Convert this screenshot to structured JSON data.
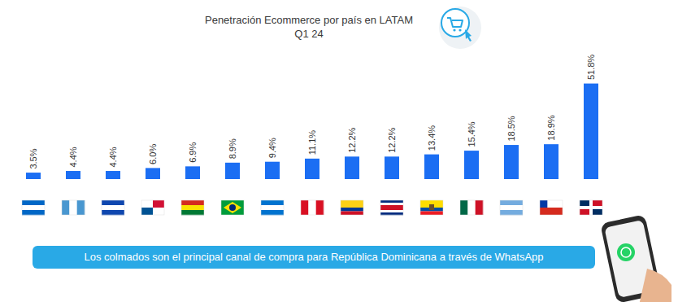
{
  "chart_data": {
    "type": "bar",
    "title": "Penetración Ecommerce por país en LATAM",
    "subtitle": "Q1 24",
    "categories": [
      null,
      null,
      null,
      null,
      null,
      null,
      null,
      null,
      null,
      null,
      null,
      null,
      null,
      null,
      null
    ],
    "values": [
      3.5,
      4.4,
      4.4,
      6.0,
      6.9,
      8.9,
      9.4,
      11.1,
      12.2,
      12.2,
      13.4,
      15.4,
      18.5,
      18.9,
      51.8
    ],
    "value_labels": [
      "3.5%",
      "4.4%",
      "4.4%",
      "6.0%",
      "6.9%",
      "8.9%",
      "9.4%",
      "11.1%",
      "12.2%",
      "12.2%",
      "13.4%",
      "15.4%",
      "18.5%",
      "18.9%",
      "51.8%"
    ],
    "color": "#1b6ef3",
    "ylim": [
      0,
      75
    ],
    "data_labels": true,
    "tick_labels": false,
    "annotations": [
      "Los colmados son el principal canal de compra para República Dominicana a través de WhatsApp"
    ]
  }
}
